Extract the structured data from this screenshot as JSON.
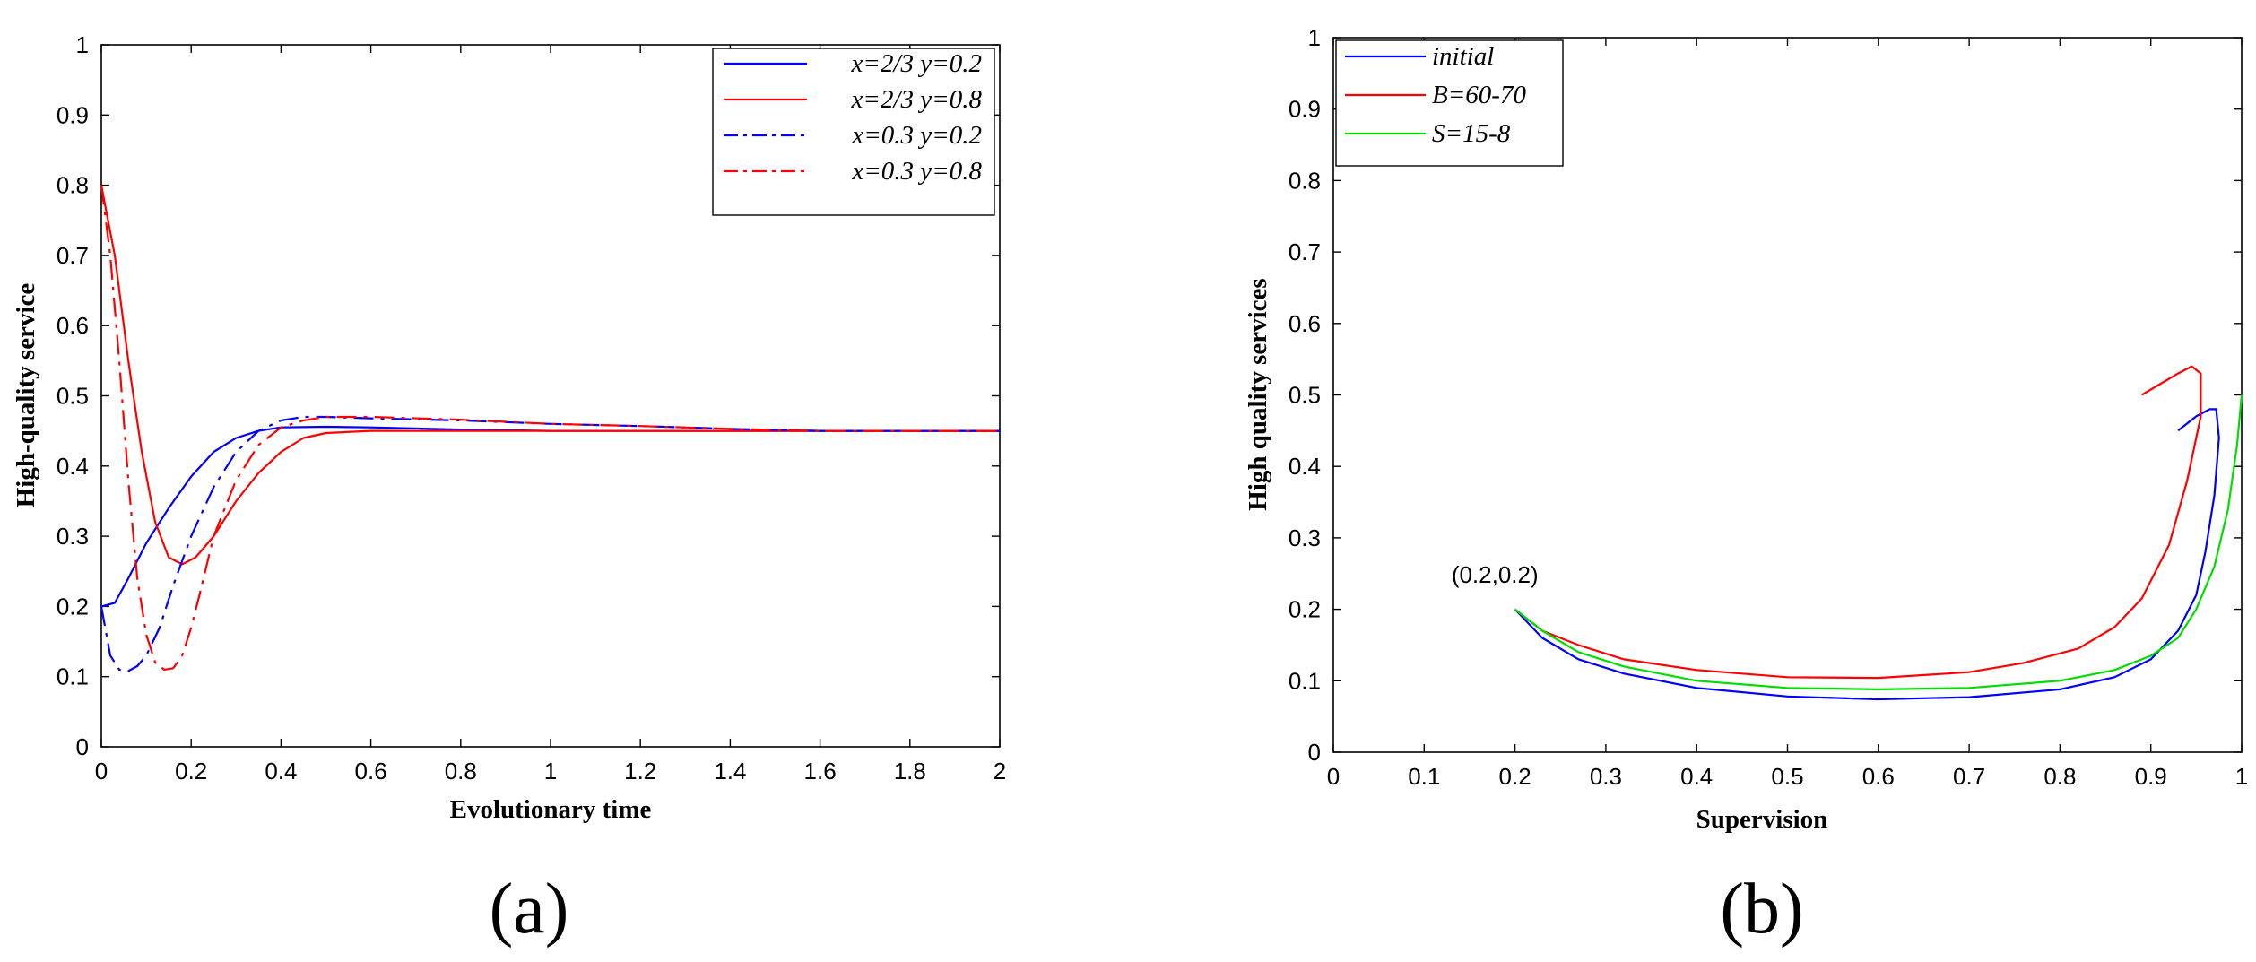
{
  "chart_data": [
    {
      "panel": "(a)",
      "type": "line",
      "xlabel": "Evolutionary time",
      "ylabel": "High-quality service",
      "xlim": [
        0,
        2
      ],
      "ylim": [
        0,
        1
      ],
      "xticks": [
        "0",
        "0.2",
        "0.4",
        "0.6",
        "0.8",
        "1",
        "1.2",
        "1.4",
        "1.6",
        "1.8",
        "2"
      ],
      "yticks": [
        "0",
        "0.1",
        "0.2",
        "0.3",
        "0.4",
        "0.5",
        "0.6",
        "0.7",
        "0.8",
        "0.9",
        "1"
      ],
      "legend_position": "top-right",
      "series": [
        {
          "name": "x=2/3 y=0.2",
          "color": "#0000ff",
          "dash": "solid",
          "x": [
            0,
            0.03,
            0.06,
            0.1,
            0.15,
            0.2,
            0.25,
            0.3,
            0.35,
            0.4,
            0.5,
            0.6,
            0.8,
            1.0,
            1.2,
            1.4,
            1.6,
            1.8,
            2.0
          ],
          "y": [
            0.2,
            0.205,
            0.24,
            0.29,
            0.34,
            0.385,
            0.42,
            0.44,
            0.45,
            0.455,
            0.456,
            0.455,
            0.452,
            0.45,
            0.45,
            0.45,
            0.45,
            0.45,
            0.45
          ]
        },
        {
          "name": "x=2/3 y=0.8",
          "color": "#ff0000",
          "dash": "solid",
          "x": [
            0,
            0.03,
            0.06,
            0.09,
            0.12,
            0.15,
            0.18,
            0.21,
            0.25,
            0.3,
            0.35,
            0.4,
            0.45,
            0.5,
            0.6,
            0.8,
            1.0,
            1.2,
            1.5,
            2.0
          ],
          "y": [
            0.8,
            0.7,
            0.55,
            0.42,
            0.32,
            0.27,
            0.26,
            0.27,
            0.3,
            0.35,
            0.39,
            0.42,
            0.44,
            0.447,
            0.45,
            0.45,
            0.45,
            0.45,
            0.45,
            0.45
          ]
        },
        {
          "name": "x=0.3 y=0.2",
          "color": "#0000ff",
          "dash": "dashdot",
          "x": [
            0,
            0.02,
            0.04,
            0.06,
            0.08,
            0.1,
            0.13,
            0.16,
            0.2,
            0.25,
            0.3,
            0.35,
            0.4,
            0.45,
            0.5,
            0.6,
            0.8,
            1.0,
            1.2,
            1.4,
            1.6,
            1.8,
            2.0
          ],
          "y": [
            0.2,
            0.13,
            0.11,
            0.108,
            0.115,
            0.13,
            0.17,
            0.23,
            0.3,
            0.37,
            0.42,
            0.45,
            0.465,
            0.47,
            0.47,
            0.468,
            0.465,
            0.46,
            0.457,
            0.453,
            0.45,
            0.45,
            0.45
          ]
        },
        {
          "name": "x=0.3 y=0.8",
          "color": "#ff0000",
          "dash": "dashdot",
          "x": [
            0,
            0.02,
            0.04,
            0.06,
            0.08,
            0.1,
            0.12,
            0.14,
            0.16,
            0.18,
            0.2,
            0.22,
            0.25,
            0.3,
            0.35,
            0.4,
            0.45,
            0.5,
            0.6,
            0.8,
            1.0,
            1.2,
            1.4,
            1.6,
            1.8,
            2.0
          ],
          "y": [
            0.8,
            0.7,
            0.55,
            0.38,
            0.24,
            0.16,
            0.12,
            0.11,
            0.112,
            0.13,
            0.17,
            0.22,
            0.3,
            0.38,
            0.43,
            0.455,
            0.465,
            0.47,
            0.47,
            0.466,
            0.46,
            0.457,
            0.453,
            0.45,
            0.45,
            0.45
          ]
        }
      ]
    },
    {
      "panel": "(b)",
      "type": "line",
      "xlabel": "Supervision",
      "ylabel": "High quality services",
      "xlim": [
        0,
        1
      ],
      "ylim": [
        0,
        1
      ],
      "xticks": [
        "0",
        "0.1",
        "0.2",
        "0.3",
        "0.4",
        "0.5",
        "0.6",
        "0.7",
        "0.8",
        "0.9",
        "1"
      ],
      "yticks": [
        "0",
        "0.1",
        "0.2",
        "0.3",
        "0.4",
        "0.5",
        "0.6",
        "0.7",
        "0.8",
        "0.9",
        "1"
      ],
      "legend_position": "top-left",
      "annotation": {
        "text": "(0.2,0.2)",
        "x": 0.14,
        "y": 0.25
      },
      "series": [
        {
          "name": "initial",
          "color": "#0000ff",
          "dash": "solid",
          "x": [
            0.2,
            0.23,
            0.27,
            0.32,
            0.4,
            0.5,
            0.6,
            0.7,
            0.8,
            0.86,
            0.9,
            0.93,
            0.95,
            0.96,
            0.97,
            0.975,
            0.972,
            0.965,
            0.95,
            0.93
          ],
          "y": [
            0.2,
            0.16,
            0.13,
            0.11,
            0.09,
            0.078,
            0.074,
            0.077,
            0.088,
            0.105,
            0.13,
            0.17,
            0.22,
            0.28,
            0.36,
            0.44,
            0.48,
            0.48,
            0.47,
            0.45
          ]
        },
        {
          "name": "B=60-70",
          "color": "#ff0000",
          "dash": "solid",
          "x": [
            0.2,
            0.23,
            0.27,
            0.32,
            0.4,
            0.5,
            0.6,
            0.7,
            0.76,
            0.82,
            0.86,
            0.89,
            0.92,
            0.94,
            0.955,
            0.955,
            0.945,
            0.93,
            0.91,
            0.89
          ],
          "y": [
            0.2,
            0.17,
            0.15,
            0.13,
            0.115,
            0.105,
            0.104,
            0.112,
            0.125,
            0.145,
            0.175,
            0.215,
            0.29,
            0.38,
            0.47,
            0.53,
            0.54,
            0.53,
            0.515,
            0.5
          ]
        },
        {
          "name": "S=15-8",
          "color": "#00dd00",
          "dash": "solid",
          "x": [
            0.2,
            0.23,
            0.27,
            0.32,
            0.4,
            0.5,
            0.6,
            0.7,
            0.8,
            0.86,
            0.9,
            0.93,
            0.95,
            0.97,
            0.985,
            0.995,
            1.0
          ],
          "y": [
            0.2,
            0.17,
            0.14,
            0.12,
            0.1,
            0.09,
            0.088,
            0.09,
            0.1,
            0.115,
            0.135,
            0.16,
            0.2,
            0.26,
            0.34,
            0.43,
            0.5
          ]
        }
      ]
    }
  ]
}
